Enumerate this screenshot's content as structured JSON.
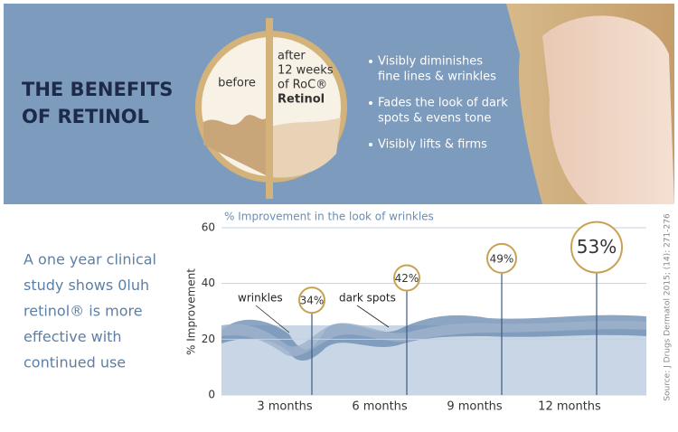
{
  "banner": {
    "title": [
      "THE BENEFITS",
      "OF RETINOL"
    ],
    "before": "before",
    "after": [
      "after",
      "12 weeks",
      "of RoC®",
      "Retinol"
    ],
    "bullets": [
      [
        "Visibly diminishes",
        "fine lines & wrinkles"
      ],
      [
        "Fades the look of dark",
        "spots & evens tone"
      ],
      [
        "Visibly lifts & firms"
      ]
    ]
  },
  "study_text": [
    "A one year clinical",
    "study shows 0luh",
    "retinol® is more",
    "effective with",
    "continued use"
  ],
  "chart_data": {
    "type": "lollipop",
    "title": "% Improvement in the look of wrinkles",
    "y_label": "% Improvement",
    "categories": [
      "3 months",
      "6 months",
      "9 months",
      "12 months"
    ],
    "values": [
      34,
      42,
      49,
      53
    ],
    "value_labels": [
      "34%",
      "42%",
      "49%",
      "53%"
    ],
    "ylim": [
      0,
      60
    ],
    "yticks": [
      0,
      20,
      40,
      60
    ],
    "grid": true,
    "color": "#c8a253",
    "annotations": [
      "wrinkles",
      "dark spots"
    ],
    "source": "Source: J Drugs Dermatol 2015; (14): 271-276"
  }
}
